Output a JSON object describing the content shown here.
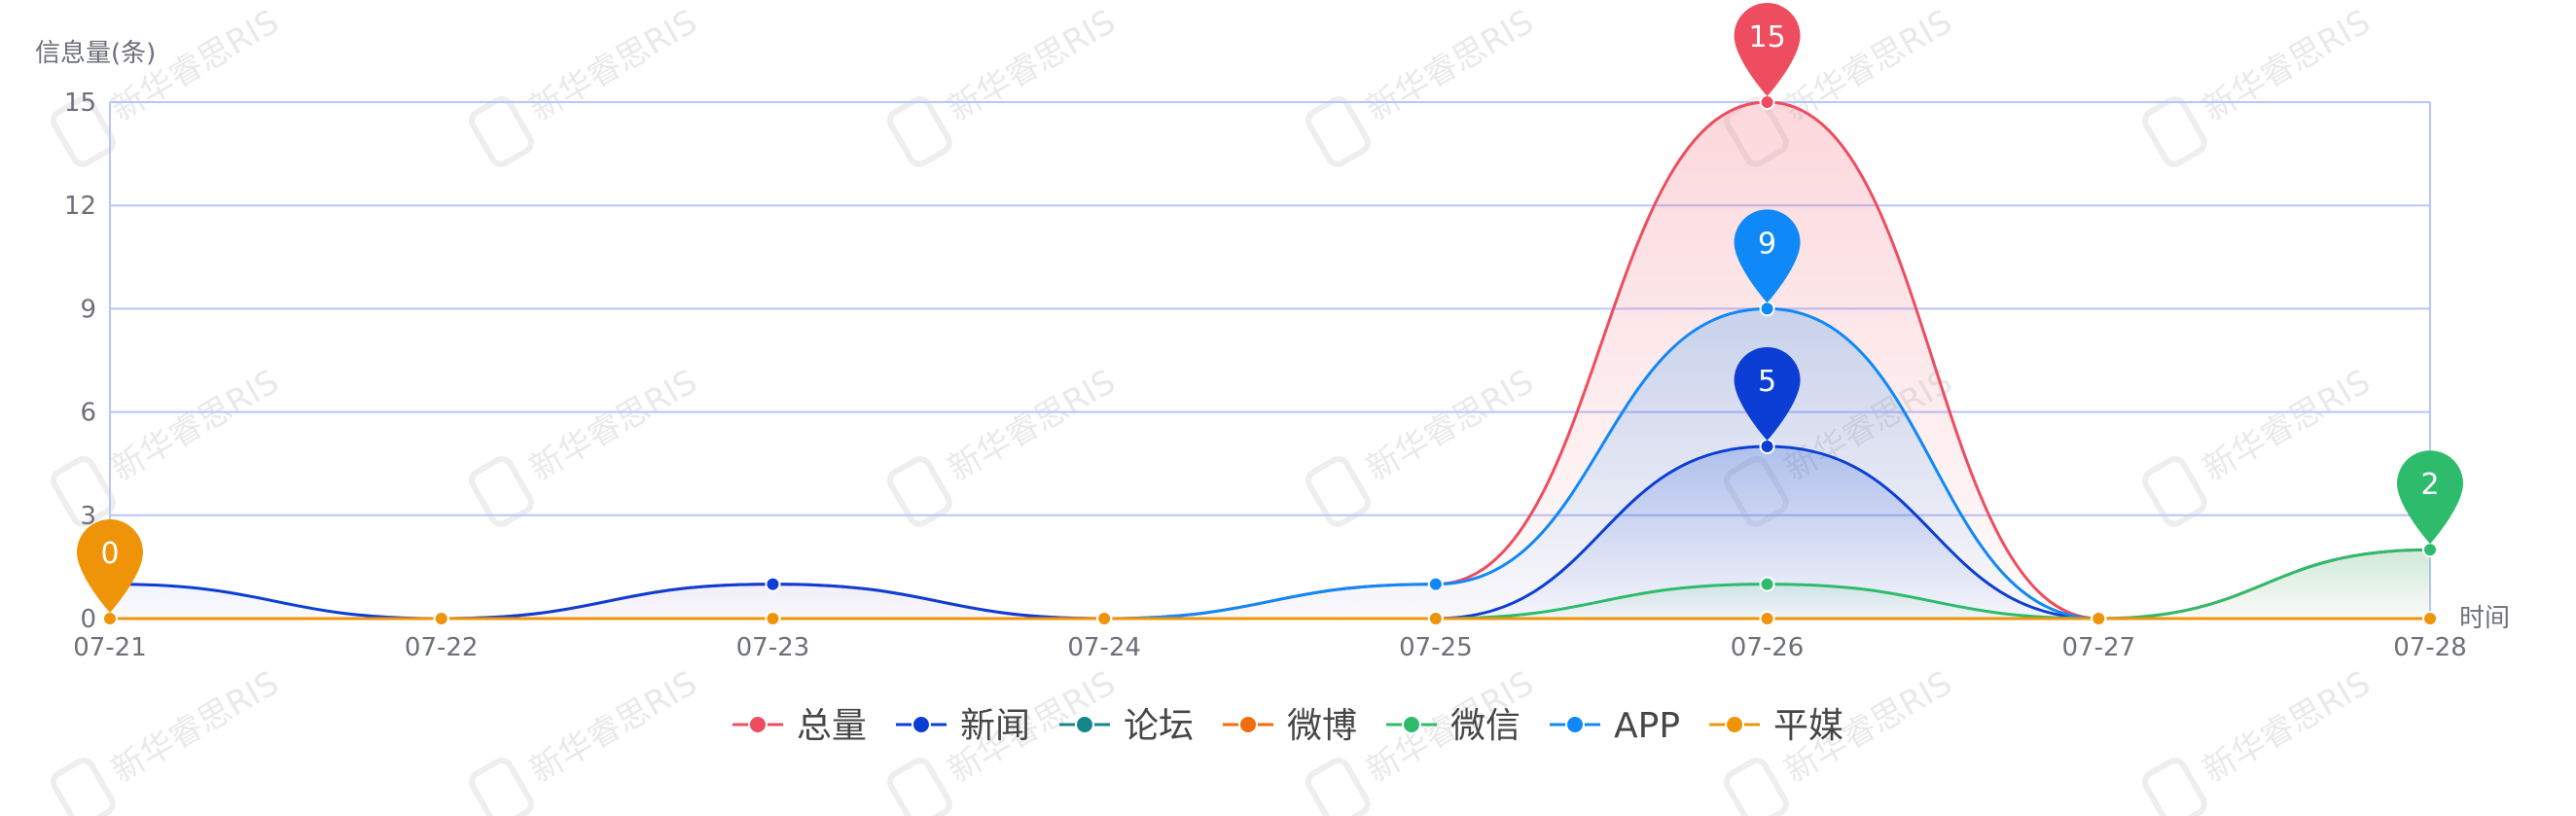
{
  "watermark": {
    "text": "新华睿思RIS"
  },
  "chart_data": {
    "type": "line",
    "smooth": true,
    "ylabel": "信息量(条)",
    "xlabel": "时间",
    "categories": [
      "07-21",
      "07-22",
      "07-23",
      "07-24",
      "07-25",
      "07-26",
      "07-27",
      "07-28"
    ],
    "ylim": [
      0,
      15
    ],
    "yticks": [
      0,
      3,
      6,
      9,
      12,
      15
    ],
    "grid": true,
    "legend_position": "bottom-center",
    "series": [
      {
        "name": "总量",
        "color": "#ee4d5f",
        "values": [
          0,
          0,
          1,
          0,
          1,
          15,
          0,
          2
        ],
        "area": true
      },
      {
        "name": "新闻",
        "color": "#0c3ed6",
        "values": [
          1,
          0,
          1,
          0,
          0,
          5,
          0,
          0
        ],
        "area": true
      },
      {
        "name": "论坛",
        "color": "#14868c",
        "values": [
          0,
          0,
          0,
          0,
          0,
          0,
          0,
          0
        ],
        "area": false
      },
      {
        "name": "微博",
        "color": "#f06c0d",
        "values": [
          0,
          0,
          0,
          0,
          0,
          0,
          0,
          0
        ],
        "area": false
      },
      {
        "name": "微信",
        "color": "#2ebb6b",
        "values": [
          0,
          0,
          0,
          0,
          0,
          1,
          0,
          2
        ],
        "area": true
      },
      {
        "name": "APP",
        "color": "#0f89f7",
        "values": [
          0,
          0,
          0,
          0,
          1,
          9,
          0,
          0
        ],
        "area": true
      },
      {
        "name": "平媒",
        "color": "#ef9409",
        "values": [
          0,
          0,
          0,
          0,
          0,
          0,
          0,
          0
        ],
        "area": false
      }
    ],
    "markers": [
      {
        "series": "平媒",
        "category": "07-21",
        "label": "0"
      },
      {
        "series": "总量",
        "category": "07-26",
        "label": "15"
      },
      {
        "series": "APP",
        "category": "07-26",
        "label": "9"
      },
      {
        "series": "新闻",
        "category": "07-26",
        "label": "5"
      },
      {
        "series": "微信",
        "category": "07-28",
        "label": "2"
      }
    ]
  }
}
